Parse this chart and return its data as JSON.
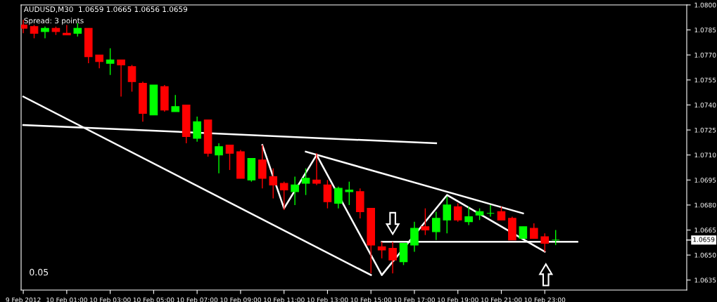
{
  "chart_data": {
    "type": "candlestick",
    "title": "AUDUSD,M30  1.0659 1.0665 1.0656 1.0659",
    "subtitle": "Spread: 3 points",
    "annotations": [
      "0.05"
    ],
    "x": [
      "2012-02-09T23:00",
      "2012-02-09T23:30",
      "2012-02-10T00:00",
      "2012-02-10T00:30",
      "2012-02-10T01:00",
      "2012-02-10T01:30",
      "2012-02-10T02:00",
      "2012-02-10T02:30",
      "2012-02-10T03:00",
      "2012-02-10T03:30",
      "2012-02-10T04:00",
      "2012-02-10T04:30",
      "2012-02-10T05:00",
      "2012-02-10T05:30",
      "2012-02-10T06:00",
      "2012-02-10T06:30",
      "2012-02-10T07:00",
      "2012-02-10T07:30",
      "2012-02-10T08:00",
      "2012-02-10T08:30",
      "2012-02-10T09:00",
      "2012-02-10T09:30",
      "2012-02-10T10:00",
      "2012-02-10T10:30",
      "2012-02-10T11:00",
      "2012-02-10T11:30",
      "2012-02-10T12:00",
      "2012-02-10T12:30",
      "2012-02-10T13:00",
      "2012-02-10T13:30",
      "2012-02-10T14:00",
      "2012-02-10T14:30",
      "2012-02-10T15:00",
      "2012-02-10T15:30",
      "2012-02-10T16:00",
      "2012-02-10T16:30",
      "2012-02-10T17:00",
      "2012-02-10T17:30",
      "2012-02-10T18:00",
      "2012-02-10T18:30",
      "2012-02-10T19:00",
      "2012-02-10T19:30",
      "2012-02-10T20:00",
      "2012-02-10T20:30",
      "2012-02-10T21:00",
      "2012-02-10T21:30",
      "2012-02-10T22:00",
      "2012-02-10T22:30",
      "2012-02-10T23:00",
      "2012-02-10T23:30"
    ],
    "ohlc": [
      [
        1.0788,
        1.0791,
        1.0783,
        1.0786
      ],
      [
        1.0787,
        1.0788,
        1.078,
        1.0783
      ],
      [
        1.0784,
        1.0787,
        1.078,
        1.0786
      ],
      [
        1.0786,
        1.0787,
        1.0782,
        1.0784
      ],
      [
        1.0783,
        1.0788,
        1.0782,
        1.0782
      ],
      [
        1.0783,
        1.0789,
        1.0781,
        1.0786
      ],
      [
        1.0786,
        1.0786,
        1.0765,
        1.0769
      ],
      [
        1.077,
        1.077,
        1.0762,
        1.0766
      ],
      [
        1.0765,
        1.0774,
        1.0758,
        1.0767
      ],
      [
        1.0767,
        1.0767,
        1.0745,
        1.0764
      ],
      [
        1.0763,
        1.0764,
        1.0748,
        1.0754
      ],
      [
        1.0753,
        1.0754,
        1.073,
        1.0735
      ],
      [
        1.0734,
        1.0752,
        1.0734,
        1.0752
      ],
      [
        1.0751,
        1.0752,
        1.0736,
        1.0737
      ],
      [
        1.0736,
        1.0746,
        1.0736,
        1.0739
      ],
      [
        1.074,
        1.074,
        1.0717,
        1.0721
      ],
      [
        1.072,
        1.0733,
        1.0718,
        1.073
      ],
      [
        1.0731,
        1.0731,
        1.0709,
        1.0711
      ],
      [
        1.071,
        1.0717,
        1.0699,
        1.0715
      ],
      [
        1.0716,
        1.0716,
        1.0701,
        1.0711
      ],
      [
        1.0712,
        1.0713,
        1.0696,
        1.0696
      ],
      [
        1.0695,
        1.0708,
        1.0694,
        1.0708
      ],
      [
        1.0707,
        1.0716,
        1.069,
        1.0696
      ],
      [
        1.0697,
        1.0702,
        1.0684,
        1.0692
      ],
      [
        1.0693,
        1.0694,
        1.0677,
        1.0689
      ],
      [
        1.0688,
        1.0697,
        1.068,
        1.0692
      ],
      [
        1.0693,
        1.0702,
        1.0686,
        1.0696
      ],
      [
        1.0695,
        1.0711,
        1.0692,
        1.0693
      ],
      [
        1.0692,
        1.0695,
        1.0678,
        1.0682
      ],
      [
        1.0681,
        1.0691,
        1.0678,
        1.069
      ],
      [
        1.0688,
        1.0694,
        1.068,
        1.0689
      ],
      [
        1.0688,
        1.069,
        1.0672,
        1.0676
      ],
      [
        1.0678,
        1.0678,
        1.0639,
        1.0656
      ],
      [
        1.0655,
        1.0658,
        1.0648,
        1.0653
      ],
      [
        1.0654,
        1.0658,
        1.0639,
        1.0647
      ],
      [
        1.0646,
        1.0657,
        1.0644,
        1.0657
      ],
      [
        1.0656,
        1.067,
        1.0652,
        1.0666
      ],
      [
        1.0667,
        1.0678,
        1.0662,
        1.0665
      ],
      [
        1.0664,
        1.0676,
        1.0659,
        1.0672
      ],
      [
        1.0671,
        1.0685,
        1.0663,
        1.068
      ],
      [
        1.0679,
        1.0681,
        1.067,
        1.0671
      ],
      [
        1.067,
        1.0679,
        1.0668,
        1.0673
      ],
      [
        1.0674,
        1.0678,
        1.0671,
        1.0676
      ],
      [
        1.0675,
        1.068,
        1.0673,
        1.0675
      ],
      [
        1.0676,
        1.0679,
        1.0671,
        1.0671
      ],
      [
        1.0672,
        1.0673,
        1.0659,
        1.0659
      ],
      [
        1.066,
        1.0667,
        1.066,
        1.0667
      ],
      [
        1.0666,
        1.0669,
        1.066,
        1.066
      ],
      [
        1.0661,
        1.0663,
        1.0652,
        1.0657
      ],
      [
        1.0659,
        1.0665,
        1.0656,
        1.0659
      ]
    ],
    "colors": [
      "#ff0000",
      "#ff0000",
      "#00ff00",
      "#ff0000",
      "#ff0000",
      "#00ff00",
      "#ff0000",
      "#ff0000",
      "#00ff00",
      "#ff0000",
      "#ff0000",
      "#ff0000",
      "#00ff00",
      "#ff0000",
      "#00ff00",
      "#ff0000",
      "#00ff00",
      "#ff0000",
      "#00ff00",
      "#ff0000",
      "#ff0000",
      "#00ff00",
      "#ff0000",
      "#ff0000",
      "#ff0000",
      "#00ff00",
      "#00ff00",
      "#ff0000",
      "#ff0000",
      "#00ff00",
      "#00ff00",
      "#ff0000",
      "#ff0000",
      "#ff0000",
      "#ff0000",
      "#00ff00",
      "#00ff00",
      "#ff0000",
      "#00ff00",
      "#00ff00",
      "#ff0000",
      "#00ff00",
      "#00ff00",
      "#00ff00",
      "#ff0000",
      "#ff0000",
      "#00ff00",
      "#ff0000",
      "#ff0000",
      "#00ff00"
    ],
    "series": [
      {
        "type": "line",
        "color": "#ffffff",
        "x": [
          "2012-02-09T23:00",
          "2012-02-10T15:00"
        ],
        "values": [
          1.0745,
          1.0638
        ]
      },
      {
        "type": "line",
        "color": "#ffffff",
        "x": [
          "2012-02-09T23:00",
          "2012-02-10T18:00"
        ],
        "values": [
          1.0728,
          1.0717
        ]
      },
      {
        "type": "line",
        "color": "#ffffff",
        "x": [
          "2012-02-10T10:00",
          "2012-02-10T11:00",
          "2012-02-10T12:30",
          "2012-02-10T15:30",
          "2012-02-10T18:30",
          "2012-02-10T23:00"
        ],
        "values": [
          1.0716,
          1.0678,
          1.071,
          1.0638,
          1.0686,
          1.0652
        ]
      },
      {
        "type": "line",
        "color": "#ffffff",
        "x": [
          "2012-02-10T12:00",
          "2012-02-10T22:00"
        ],
        "values": [
          1.0712,
          1.0675
        ]
      },
      {
        "type": "line",
        "color": "#ffffff",
        "x": [
          "2012-02-10T15:30",
          "2012-02-11T00:30"
        ],
        "values": [
          1.0658,
          1.0658
        ]
      }
    ],
    "ref_lines": [
      {
        "axis": "y",
        "value": 1.0659,
        "label": "1.0659"
      }
    ],
    "xlim": [
      "2012-02-09T22:54",
      "2012-02-11T05:32"
    ],
    "xticks": [
      {
        "value": "2012-02-09T23:00",
        "label": "9 Feb 2012"
      },
      {
        "value": "2012-02-10T01:00",
        "label": "10 Feb 01:00"
      },
      {
        "value": "2012-02-10T03:00",
        "label": "10 Feb 03:00"
      },
      {
        "value": "2012-02-10T05:00",
        "label": "10 Feb 05:00"
      },
      {
        "value": "2012-02-10T07:00",
        "label": "10 Feb 07:00"
      },
      {
        "value": "2012-02-10T09:00",
        "label": "10 Feb 09:00"
      },
      {
        "value": "2012-02-10T11:00",
        "label": "10 Feb 11:00"
      },
      {
        "value": "2012-02-10T13:00",
        "label": "10 Feb 13:00"
      },
      {
        "value": "2012-02-10T15:00",
        "label": "10 Feb 15:00"
      },
      {
        "value": "2012-02-10T17:00",
        "label": "10 Feb 17:00"
      },
      {
        "value": "2012-02-10T19:00",
        "label": "10 Feb 19:00"
      },
      {
        "value": "2012-02-10T21:00",
        "label": "10 Feb 21:00"
      },
      {
        "value": "2012-02-10T23:00",
        "label": "10 Feb 23:00"
      }
    ],
    "ylim": [
      1.0629,
      1.08
    ],
    "yticks": [
      {
        "value": 1.08,
        "label": "1.0800"
      },
      1.0785,
      {
        "value": 1.077,
        "label": "1.0770"
      },
      1.0755,
      {
        "value": 1.074,
        "label": "1.0740"
      },
      1.0725,
      {
        "value": 1.071,
        "label": "1.0710"
      },
      1.0695,
      {
        "value": 1.068,
        "label": "1.0680"
      },
      1.0665,
      {
        "value": 1.065,
        "label": "1.0650"
      },
      1.0635
    ],
    "grid": false,
    "legend": false
  }
}
